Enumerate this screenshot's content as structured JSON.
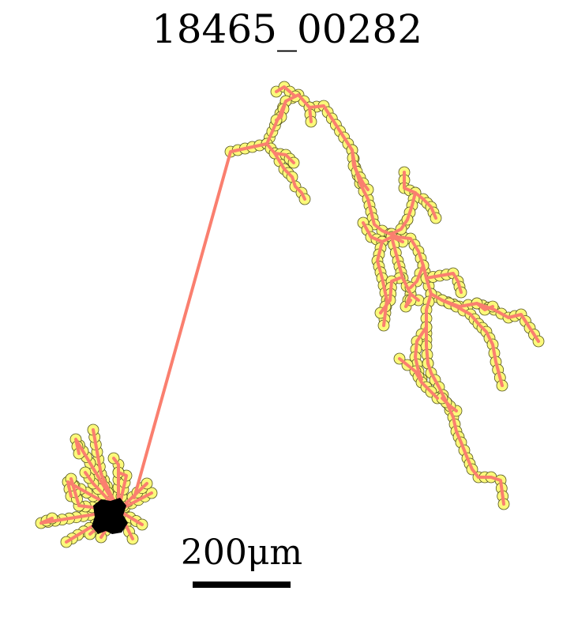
{
  "title": "18465_00282",
  "scale": {
    "label": "200μm",
    "length_um": 200
  },
  "colors": {
    "trace": "#fa7f6f",
    "node_fill": "#fbf97a",
    "node_stroke": "#55551f",
    "soma": "#000000"
  }
}
